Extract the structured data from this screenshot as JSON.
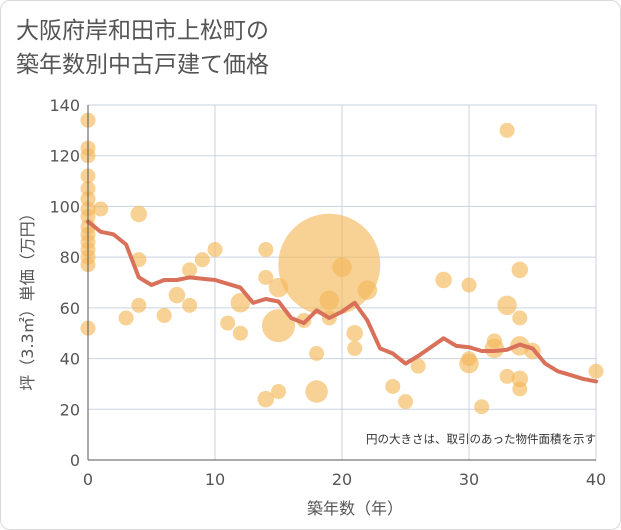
{
  "title": {
    "line1": "大阪府岸和田市上松町の",
    "line2": "築年数別中古戸建て価格"
  },
  "note": "円の大きさは、取引のあった物件面積を示す",
  "colors": {
    "bubble": "#f5b85a",
    "line": "#d9705a",
    "grid": "#c9d3e0",
    "axis": "#555555"
  },
  "chart_data": {
    "type": "scatter",
    "xlabel": "築年数（年）",
    "ylabel": "坪（3.3㎡）単価（万円）",
    "xlim": [
      0,
      40
    ],
    "ylim": [
      0,
      140
    ],
    "x_ticks": [
      0,
      10,
      20,
      30,
      40
    ],
    "y_ticks": [
      0,
      20,
      40,
      60,
      80,
      100,
      120,
      140
    ],
    "grid": true,
    "points": [
      {
        "x": 0,
        "y": 134,
        "s": 1
      },
      {
        "x": 0,
        "y": 123,
        "s": 1
      },
      {
        "x": 0,
        "y": 120,
        "s": 1
      },
      {
        "x": 0,
        "y": 112,
        "s": 1
      },
      {
        "x": 0,
        "y": 107,
        "s": 1
      },
      {
        "x": 0,
        "y": 103,
        "s": 1
      },
      {
        "x": 0,
        "y": 99,
        "s": 1
      },
      {
        "x": 0,
        "y": 96,
        "s": 1
      },
      {
        "x": 0,
        "y": 92,
        "s": 1
      },
      {
        "x": 0,
        "y": 89,
        "s": 1
      },
      {
        "x": 0,
        "y": 86,
        "s": 1
      },
      {
        "x": 0,
        "y": 83,
        "s": 1
      },
      {
        "x": 0,
        "y": 80,
        "s": 1
      },
      {
        "x": 0,
        "y": 77,
        "s": 1
      },
      {
        "x": 0,
        "y": 52,
        "s": 1
      },
      {
        "x": 1,
        "y": 99,
        "s": 1
      },
      {
        "x": 3,
        "y": 56,
        "s": 1
      },
      {
        "x": 4,
        "y": 97,
        "s": 1.1
      },
      {
        "x": 4,
        "y": 79,
        "s": 1
      },
      {
        "x": 4,
        "y": 61,
        "s": 1
      },
      {
        "x": 6,
        "y": 57,
        "s": 1
      },
      {
        "x": 7,
        "y": 65,
        "s": 1.1
      },
      {
        "x": 8,
        "y": 75,
        "s": 1
      },
      {
        "x": 8,
        "y": 61,
        "s": 1
      },
      {
        "x": 9,
        "y": 79,
        "s": 1
      },
      {
        "x": 10,
        "y": 83,
        "s": 1
      },
      {
        "x": 11,
        "y": 54,
        "s": 1
      },
      {
        "x": 12,
        "y": 62,
        "s": 1.3
      },
      {
        "x": 12,
        "y": 50,
        "s": 1
      },
      {
        "x": 14,
        "y": 83,
        "s": 1
      },
      {
        "x": 14,
        "y": 72,
        "s": 1
      },
      {
        "x": 14,
        "y": 24,
        "s": 1.1
      },
      {
        "x": 15,
        "y": 68,
        "s": 1.3
      },
      {
        "x": 15,
        "y": 53,
        "s": 2.2
      },
      {
        "x": 15,
        "y": 27,
        "s": 1
      },
      {
        "x": 17,
        "y": 55,
        "s": 1
      },
      {
        "x": 18,
        "y": 42,
        "s": 1
      },
      {
        "x": 18,
        "y": 27,
        "s": 1.5
      },
      {
        "x": 19,
        "y": 77,
        "s": 6.8
      },
      {
        "x": 19,
        "y": 63,
        "s": 1.3
      },
      {
        "x": 19,
        "y": 56,
        "s": 1
      },
      {
        "x": 20,
        "y": 76,
        "s": 1.3
      },
      {
        "x": 21,
        "y": 50,
        "s": 1.1
      },
      {
        "x": 21,
        "y": 44,
        "s": 1
      },
      {
        "x": 22,
        "y": 67,
        "s": 1.3
      },
      {
        "x": 24,
        "y": 29,
        "s": 1
      },
      {
        "x": 25,
        "y": 23,
        "s": 1
      },
      {
        "x": 26,
        "y": 37,
        "s": 1
      },
      {
        "x": 28,
        "y": 71,
        "s": 1.1
      },
      {
        "x": 30,
        "y": 69,
        "s": 1
      },
      {
        "x": 30,
        "y": 40,
        "s": 1
      },
      {
        "x": 30,
        "y": 38,
        "s": 1.3
      },
      {
        "x": 31,
        "y": 21,
        "s": 1
      },
      {
        "x": 32,
        "y": 47,
        "s": 1
      },
      {
        "x": 32,
        "y": 44,
        "s": 1.3
      },
      {
        "x": 33,
        "y": 130,
        "s": 1
      },
      {
        "x": 33,
        "y": 61,
        "s": 1.3
      },
      {
        "x": 33,
        "y": 33,
        "s": 1
      },
      {
        "x": 34,
        "y": 75,
        "s": 1.1
      },
      {
        "x": 34,
        "y": 56,
        "s": 1
      },
      {
        "x": 34,
        "y": 45,
        "s": 1.3
      },
      {
        "x": 34,
        "y": 32,
        "s": 1.1
      },
      {
        "x": 34,
        "y": 28,
        "s": 1
      },
      {
        "x": 35,
        "y": 43,
        "s": 1.1
      },
      {
        "x": 40,
        "y": 35,
        "s": 1
      }
    ],
    "series": [
      {
        "x": [
          0,
          1,
          2,
          3,
          4,
          5,
          6,
          7,
          8,
          9,
          10,
          11,
          12,
          13,
          14,
          15,
          16,
          17,
          18,
          19,
          20,
          21,
          22,
          23,
          24,
          25,
          26,
          27,
          28,
          29,
          30,
          31,
          32,
          33,
          34,
          35,
          36,
          37,
          38,
          39,
          40
        ],
        "y": [
          94,
          90,
          89,
          85,
          72,
          69,
          71,
          71,
          72,
          71.5,
          71,
          69.5,
          68,
          62,
          63.5,
          62.5,
          56,
          54,
          59,
          56,
          58.5,
          62,
          55,
          44,
          42,
          38,
          41,
          44.5,
          48,
          45,
          44.5,
          43,
          43,
          43.5,
          45.5,
          44,
          38,
          35,
          33.5,
          32,
          31
        ]
      }
    ]
  }
}
